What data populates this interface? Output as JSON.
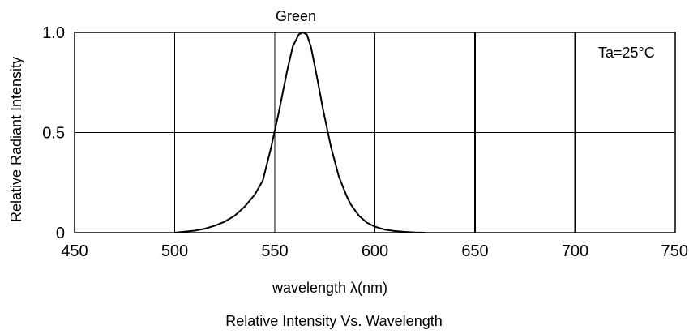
{
  "chart_data": {
    "type": "line",
    "title": "Green",
    "caption": "Relative Intensity Vs. Wavelength",
    "xlabel": "wavelength λ(nm)",
    "ylabel": "Relative Radiant Intensity",
    "annotation": "Ta=25°C",
    "xlim": [
      450,
      750
    ],
    "ylim": [
      0,
      1.0
    ],
    "x_ticks": [
      450,
      500,
      550,
      600,
      650,
      700,
      750
    ],
    "x_tick_labels": [
      "450",
      "500",
      "550",
      "600",
      "650",
      "700",
      "750"
    ],
    "y_ticks": [
      0,
      0.5,
      1.0
    ],
    "y_tick_labels": [
      "0",
      "0.5",
      "1.0"
    ],
    "grid": true,
    "line_color": "#000000",
    "series": [
      {
        "x": [
          500,
          505,
          510,
          515,
          520,
          525,
          530,
          535,
          540,
          544,
          548,
          552,
          556,
          559,
          562,
          564,
          566,
          568,
          571,
          574,
          578,
          582,
          586,
          588,
          592,
          596,
          600,
          605,
          610,
          615,
          620,
          625
        ],
        "y": [
          0,
          0.005,
          0.01,
          0.02,
          0.035,
          0.055,
          0.085,
          0.13,
          0.19,
          0.26,
          0.42,
          0.6,
          0.8,
          0.93,
          0.99,
          1.0,
          0.99,
          0.93,
          0.78,
          0.62,
          0.43,
          0.28,
          0.18,
          0.14,
          0.085,
          0.05,
          0.03,
          0.015,
          0.008,
          0.004,
          0.001,
          0
        ]
      }
    ]
  }
}
